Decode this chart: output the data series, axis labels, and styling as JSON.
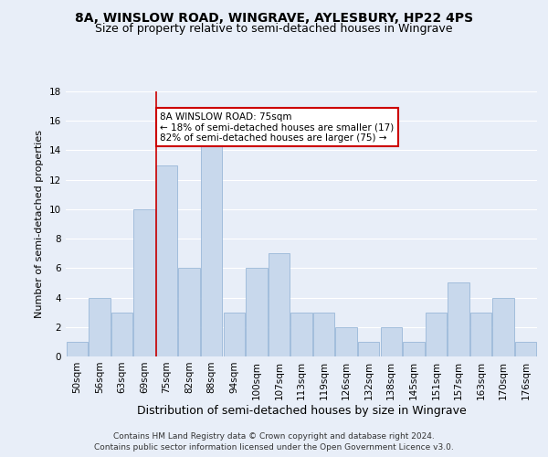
{
  "title1": "8A, WINSLOW ROAD, WINGRAVE, AYLESBURY, HP22 4PS",
  "title2": "Size of property relative to semi-detached houses in Wingrave",
  "xlabel": "Distribution of semi-detached houses by size in Wingrave",
  "ylabel": "Number of semi-detached properties",
  "categories": [
    "50sqm",
    "56sqm",
    "63sqm",
    "69sqm",
    "75sqm",
    "82sqm",
    "88sqm",
    "94sqm",
    "100sqm",
    "107sqm",
    "113sqm",
    "119sqm",
    "126sqm",
    "132sqm",
    "138sqm",
    "145sqm",
    "151sqm",
    "157sqm",
    "163sqm",
    "170sqm",
    "176sqm"
  ],
  "values": [
    1,
    4,
    3,
    10,
    13,
    6,
    15,
    3,
    6,
    7,
    3,
    3,
    2,
    1,
    2,
    1,
    3,
    5,
    3,
    4,
    1
  ],
  "bar_color": "#c8d8ec",
  "bar_edge_color": "#9ab8d8",
  "highlight_index": 4,
  "highlight_line_color": "#cc0000",
  "ylim": [
    0,
    18
  ],
  "yticks": [
    0,
    2,
    4,
    6,
    8,
    10,
    12,
    14,
    16,
    18
  ],
  "annotation_text": "8A WINSLOW ROAD: 75sqm\n← 18% of semi-detached houses are smaller (17)\n82% of semi-detached houses are larger (75) →",
  "annotation_box_color": "#ffffff",
  "annotation_border_color": "#cc0000",
  "footer1": "Contains HM Land Registry data © Crown copyright and database right 2024.",
  "footer2": "Contains public sector information licensed under the Open Government Licence v3.0.",
  "bg_color": "#e8eef8",
  "grid_color": "#ffffff",
  "title_fontsize": 10,
  "subtitle_fontsize": 9,
  "tick_fontsize": 7.5,
  "ylabel_fontsize": 8,
  "xlabel_fontsize": 9,
  "annotation_fontsize": 7.5,
  "footer_fontsize": 6.5
}
